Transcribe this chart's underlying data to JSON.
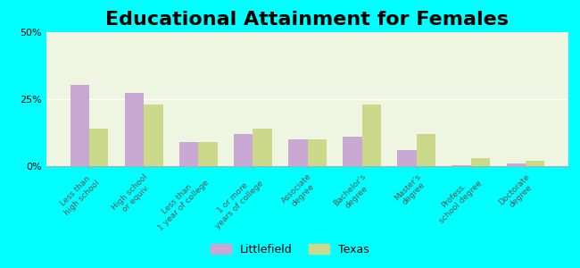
{
  "title": "Educational Attainment for Females",
  "categories": [
    "Less than\nhigh school",
    "High school\nor equiv.",
    "Less than\n1 year of college",
    "1 or more\nyears of college",
    "Associate\ndegree",
    "Bachelor's\ndegree",
    "Master's\ndegree",
    "Profess.\nschool degree",
    "Doctorate\ndegree"
  ],
  "littlefield_values": [
    30.5,
    27.5,
    9.0,
    12.0,
    10.0,
    11.0,
    6.0,
    0.3,
    1.0
  ],
  "texas_values": [
    14.0,
    23.0,
    9.0,
    14.0,
    10.0,
    23.0,
    12.0,
    3.0,
    2.0
  ],
  "littlefield_color": "#c9a8d4",
  "texas_color": "#ccd98a",
  "background_color": "#00ffff",
  "plot_bg_color": "#eef5e0",
  "title_fontsize": 16,
  "ylim": [
    0,
    50
  ],
  "yticks": [
    0,
    25,
    50
  ],
  "ytick_labels": [
    "0%",
    "25%",
    "50%"
  ],
  "bar_width": 0.35,
  "legend_labels": [
    "Littlefield",
    "Texas"
  ]
}
